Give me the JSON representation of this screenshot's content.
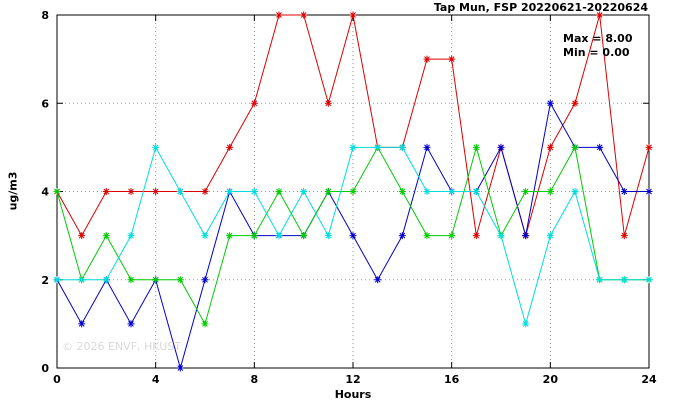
{
  "title": "Tap Mun, FSP 20220621-20220624",
  "annotation": {
    "max_label": "Max = 8.00",
    "min_label": "Min = 0.00"
  },
  "watermark": "© 2026 ENVF, HKUST",
  "chart_data": {
    "type": "line",
    "title": "Tap Mun, FSP 20220621-20220624",
    "xlabel": "Hours",
    "ylabel": "ug/m3",
    "xlim": [
      0,
      24
    ],
    "ylim": [
      0,
      8
    ],
    "xticks": [
      0,
      4,
      8,
      12,
      16,
      20,
      24
    ],
    "yticks": [
      0,
      2,
      4,
      6,
      8
    ],
    "grid": true,
    "legend": "none",
    "marker": "asterisk",
    "x": [
      0,
      1,
      2,
      3,
      4,
      5,
      6,
      7,
      8,
      9,
      10,
      11,
      12,
      13,
      14,
      15,
      16,
      17,
      18,
      19,
      20,
      21,
      22,
      23,
      24
    ],
    "series": [
      {
        "name": "red-series",
        "color": "#dd0000",
        "values": [
          4,
          3,
          4,
          4,
          4,
          4,
          4,
          5,
          6,
          8,
          8,
          6,
          8,
          5,
          5,
          7,
          7,
          3,
          5,
          3,
          5,
          6,
          8,
          3,
          5
        ]
      },
      {
        "name": "blue-series",
        "color": "#0000cc",
        "values": [
          2,
          1,
          2,
          1,
          2,
          0,
          2,
          4,
          3,
          3,
          3,
          4,
          3,
          2,
          3,
          5,
          4,
          4,
          5,
          3,
          6,
          5,
          5,
          4,
          4
        ]
      },
      {
        "name": "green-series",
        "color": "#00cc00",
        "values": [
          4,
          2,
          3,
          2,
          2,
          2,
          1,
          3,
          3,
          4,
          3,
          4,
          4,
          5,
          4,
          3,
          3,
          5,
          3,
          4,
          4,
          5,
          2,
          2,
          2
        ]
      },
      {
        "name": "cyan-series",
        "color": "#00dddd",
        "values": [
          2,
          2,
          2,
          3,
          5,
          4,
          3,
          4,
          4,
          3,
          4,
          3,
          5,
          5,
          5,
          4,
          4,
          4,
          3,
          1,
          3,
          4,
          2,
          2,
          2
        ]
      }
    ],
    "stats": {
      "max": 8.0,
      "min": 0.0
    }
  },
  "grid_color": "#999999",
  "border_color": "#000000"
}
